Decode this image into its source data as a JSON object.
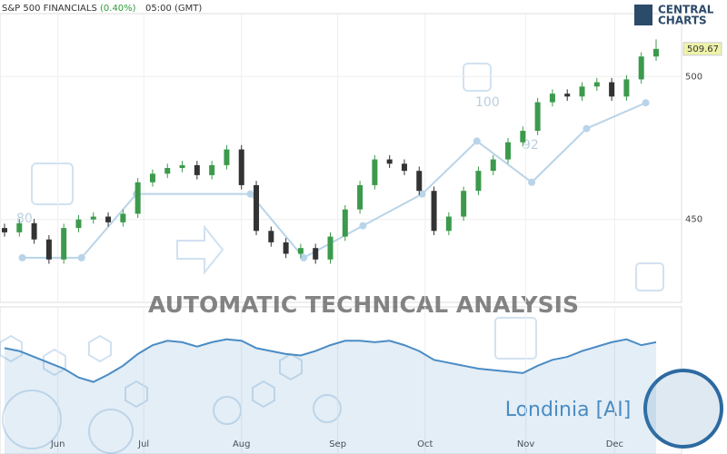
{
  "header": {
    "symbol": "S&P 500 FINANCIALS",
    "change": "(0.40%)",
    "time": "05:00 (GMT)"
  },
  "logo": {
    "line1": "CENTRAL",
    "line2": "CHARTS"
  },
  "watermark": {
    "title": "AUTOMATIC TECHNICAL ANALYSIS",
    "brand": "Londinia [AI]",
    "badges": [
      "100",
      "92",
      "80"
    ]
  },
  "chart_data": {
    "type": "candlestick",
    "up_color": "#3c9a4c",
    "down_color": "#333333",
    "ma_color": "#b9d4e8",
    "indicator_color": "#4a8cc4",
    "open": [
      447,
      445.5,
      448.7,
      443,
      436,
      447,
      450,
      451,
      449,
      452,
      463,
      466,
      468,
      469,
      465.5,
      469,
      474.5,
      462,
      446,
      442,
      438,
      440,
      436,
      444,
      453.5,
      462,
      471,
      469.5,
      467,
      460,
      446,
      451,
      460,
      467,
      471,
      477,
      481,
      491,
      494,
      493,
      496.5,
      498,
      493,
      499,
      507
    ],
    "high": [
      448.5,
      450.2,
      450.2,
      444.5,
      448.5,
      451.5,
      452.5,
      452.5,
      453.5,
      464.5,
      467.5,
      469.5,
      470.5,
      470.5,
      470.5,
      476,
      476,
      463.5,
      447.5,
      443.5,
      441.5,
      441.5,
      445.5,
      455,
      463.5,
      472.5,
      472.5,
      471,
      468.5,
      461.5,
      452.5,
      461.5,
      468.5,
      472.5,
      478.5,
      482.5,
      492.5,
      495.5,
      495.5,
      498,
      499.5,
      499.5,
      500.5,
      508.5,
      513
    ],
    "low": [
      444,
      444,
      441.5,
      434.5,
      434.5,
      445.5,
      448.5,
      447.5,
      447.5,
      450.5,
      461.5,
      464.5,
      466.5,
      464,
      464,
      467.5,
      460.5,
      444.5,
      440.5,
      436.5,
      436.5,
      434.5,
      434.5,
      442.5,
      452,
      460.5,
      468,
      465.5,
      458.5,
      444.5,
      444.5,
      449.5,
      458.5,
      465.5,
      469.5,
      475.5,
      479.5,
      489.5,
      491.5,
      491.5,
      495,
      491.5,
      491.5,
      497.5,
      505.5
    ],
    "close": [
      445.5,
      448.7,
      443,
      436,
      447,
      450,
      451,
      449,
      452,
      463,
      466,
      468,
      469,
      465.5,
      469,
      474.5,
      462,
      446,
      442,
      438,
      440,
      436,
      444,
      453.5,
      462,
      471,
      469.5,
      467,
      460,
      446,
      451,
      460,
      467,
      471,
      477,
      481,
      491,
      494,
      493,
      496.5,
      498,
      493,
      499,
      507,
      509.67
    ],
    "ma": {
      "x": [
        1.2,
        5.2,
        8.9,
        16.6,
        20.2,
        24.2,
        28.2,
        31.9,
        35.6,
        39.3,
        43.3
      ],
      "values": [
        436.6,
        436.6,
        458.9,
        458.9,
        436.6,
        447.8,
        458.9,
        477.4,
        463,
        481.8,
        490.8
      ]
    },
    "indicator": {
      "values": [
        72,
        70,
        66,
        62,
        58,
        52,
        49,
        54,
        60,
        68,
        74,
        77,
        76,
        73,
        76,
        78,
        77,
        72,
        70,
        68,
        67,
        70,
        74,
        77,
        77,
        76,
        77,
        74,
        70,
        64,
        62,
        60,
        58,
        57,
        56,
        55,
        60,
        64,
        66,
        70,
        73,
        76,
        78,
        74,
        76
      ],
      "ylim": [
        0,
        100
      ]
    },
    "xlim": [
      0,
      44
    ],
    "xticks": [
      {
        "value": 3.6,
        "label": "Jun"
      },
      {
        "value": 9.4,
        "label": "Jul"
      },
      {
        "value": 16,
        "label": "Aug"
      },
      {
        "value": 22.5,
        "label": "Sep"
      },
      {
        "value": 28.4,
        "label": "Oct"
      },
      {
        "value": 35.2,
        "label": "Nov"
      },
      {
        "value": 41.2,
        "label": "Dec"
      }
    ],
    "ylim": [
      421,
      522
    ],
    "yticks": [
      450,
      500
    ],
    "grid": true
  }
}
